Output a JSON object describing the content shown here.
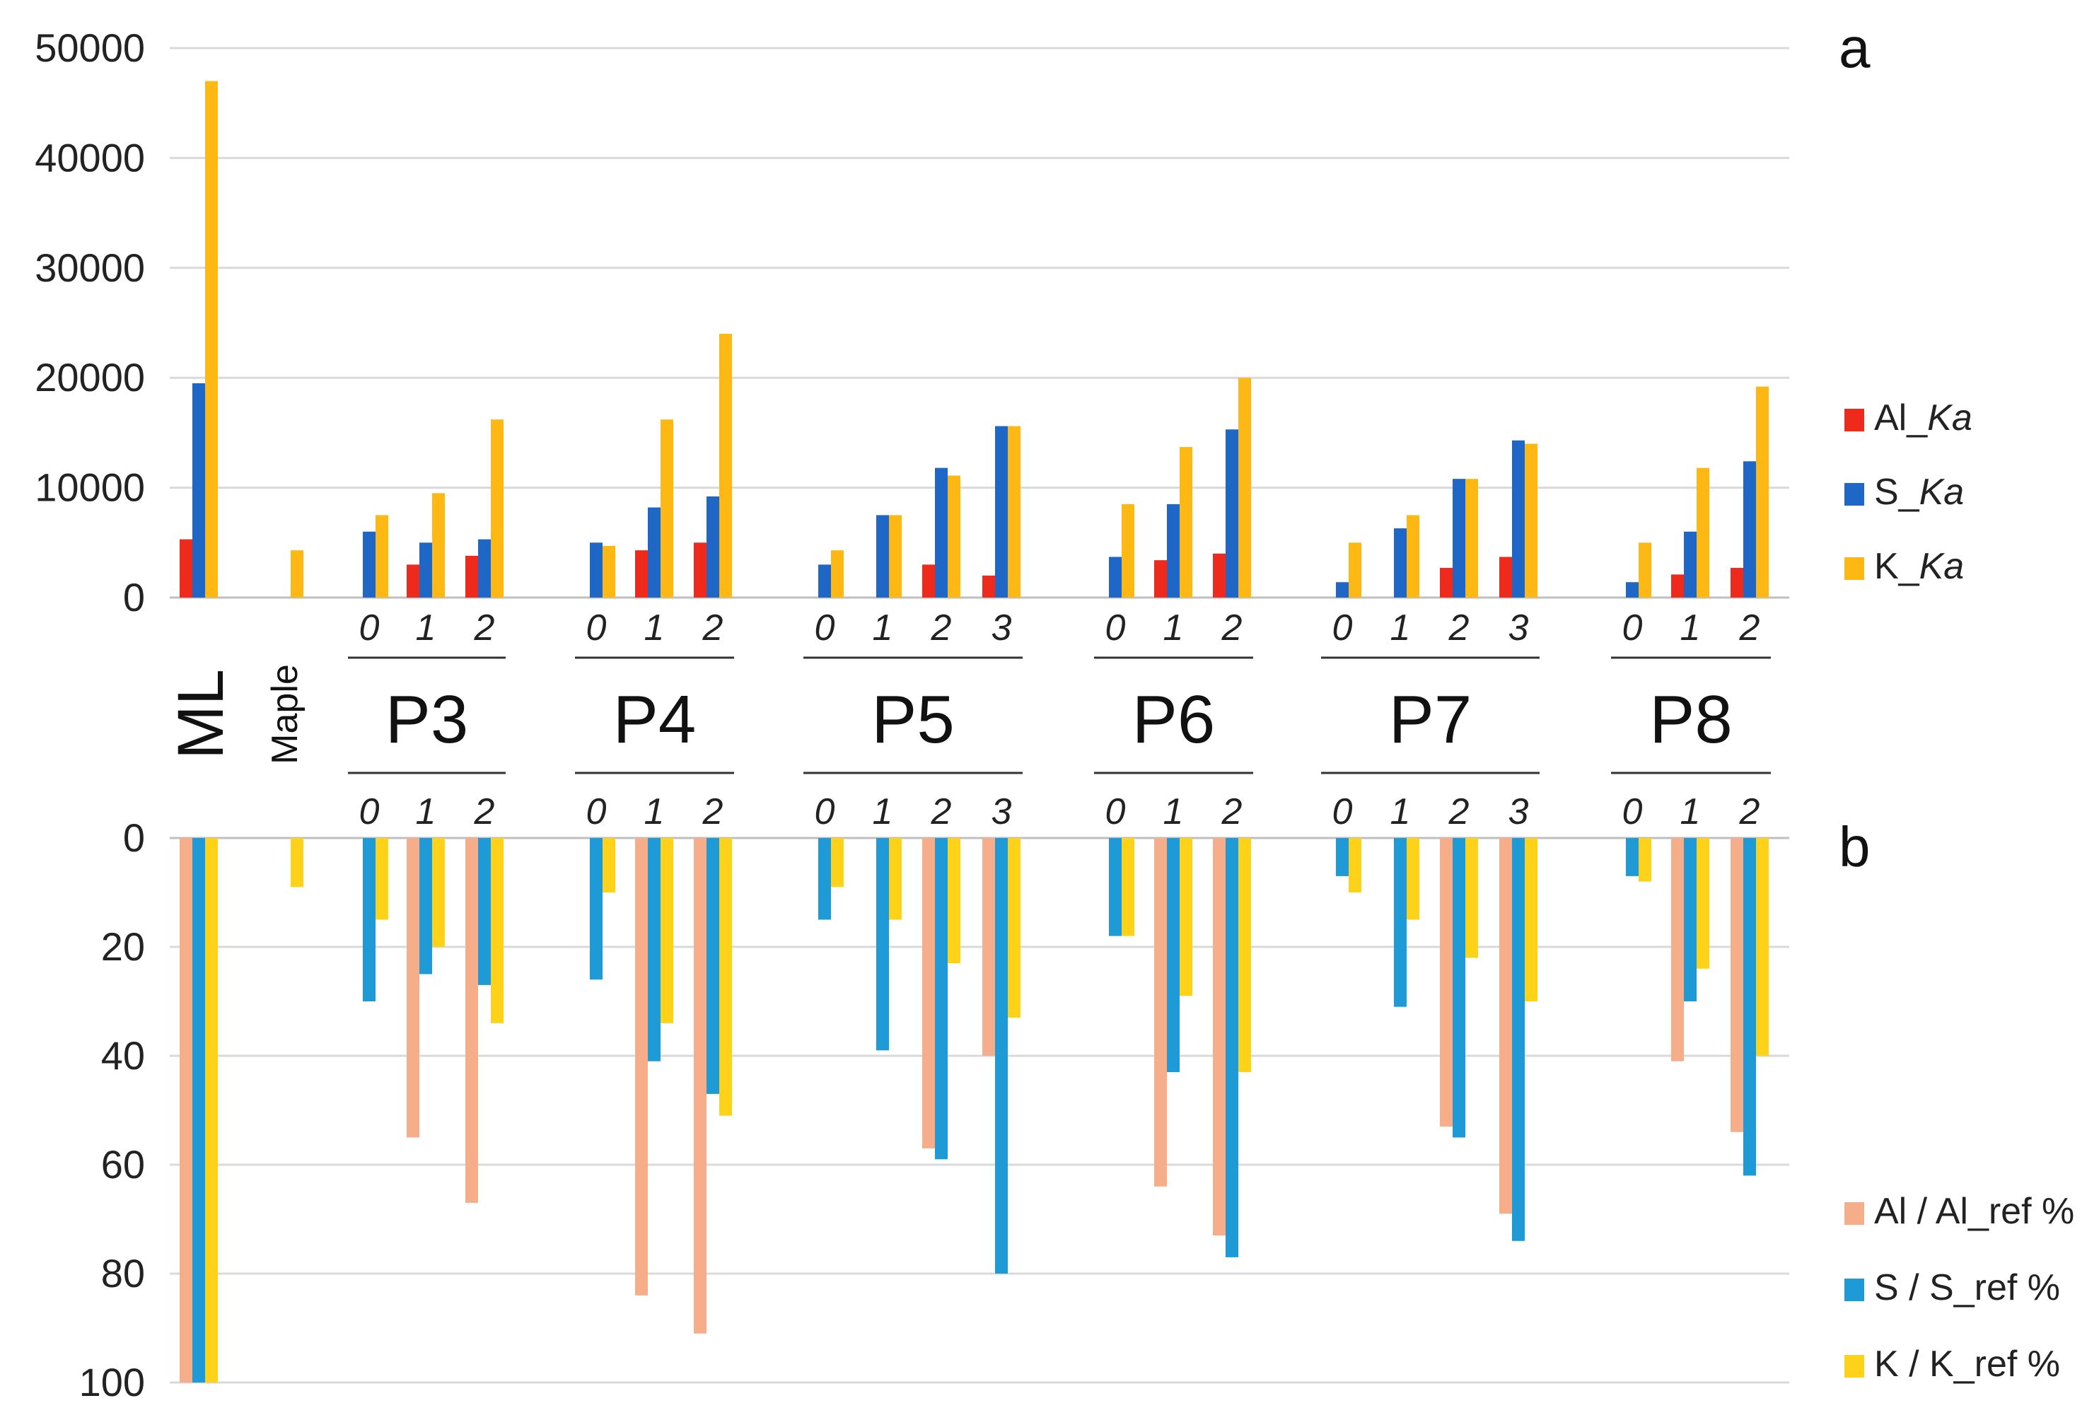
{
  "chart_data": [
    {
      "panel": "a",
      "type": "bar",
      "ylim": [
        0,
        50000
      ],
      "yticks": [
        "0",
        "10000",
        "20000",
        "30000",
        "40000",
        "50000"
      ],
      "grid": true,
      "legend_position": "right",
      "series": [
        {
          "name_prefix": "Al_",
          "name_italic": "Ka",
          "color": "#ee2a1c",
          "values": [
            5300,
            0,
            0,
            3000,
            3800,
            0,
            4300,
            5000,
            0,
            0,
            3000,
            2000,
            0,
            3400,
            4000,
            0,
            0,
            2700,
            3700,
            0,
            2100,
            2700
          ]
        },
        {
          "name_prefix": "S_",
          "name_italic": "Ka",
          "color": "#1f67c6",
          "values": [
            19500,
            0,
            6000,
            5000,
            5300,
            5000,
            8200,
            9200,
            3000,
            7500,
            11800,
            15600,
            3700,
            8500,
            15300,
            1400,
            6300,
            10800,
            14300,
            1400,
            6000,
            12400
          ]
        },
        {
          "name_prefix": "K_",
          "name_italic": "Ka",
          "color": "#fdb813",
          "values": [
            47000,
            4300,
            7500,
            9500,
            16200,
            4700,
            16200,
            24000,
            4300,
            7500,
            11100,
            15600,
            8500,
            13700,
            20000,
            5000,
            7500,
            10800,
            14000,
            5000,
            11800,
            19200
          ]
        }
      ]
    },
    {
      "panel": "b",
      "type": "bar",
      "orientation": "downward",
      "ylim": [
        0,
        100
      ],
      "yticks": [
        "0",
        "20",
        "40",
        "60",
        "80",
        "100"
      ],
      "grid": true,
      "legend_position": "right",
      "series": [
        {
          "name": "Al / Al_ref %",
          "color": "#f6ad8a",
          "values": [
            100,
            0,
            0,
            55,
            67,
            0,
            84,
            91,
            0,
            0,
            57,
            40,
            0,
            64,
            73,
            0,
            0,
            53,
            69,
            0,
            41,
            54
          ]
        },
        {
          "name": "S / S_ref %",
          "color": "#1e9bd7",
          "values": [
            100,
            0,
            30,
            25,
            27,
            26,
            41,
            47,
            15,
            39,
            59,
            80,
            18,
            43,
            77,
            7,
            31,
            55,
            74,
            7,
            30,
            62
          ]
        },
        {
          "name": "K / K_ref %",
          "color": "#ffd21a",
          "values": [
            100,
            9,
            15,
            20,
            34,
            10,
            34,
            51,
            9,
            15,
            23,
            33,
            18,
            29,
            43,
            10,
            15,
            22,
            30,
            8,
            24,
            40
          ]
        }
      ]
    }
  ],
  "categories": [
    {
      "group": "ML",
      "sub": ""
    },
    {
      "group": "Maple",
      "sub": ""
    },
    {
      "group": "P3",
      "sub": "0"
    },
    {
      "group": "P3",
      "sub": "1"
    },
    {
      "group": "P3",
      "sub": "2"
    },
    {
      "group": "P4",
      "sub": "0"
    },
    {
      "group": "P4",
      "sub": "1"
    },
    {
      "group": "P4",
      "sub": "2"
    },
    {
      "group": "P5",
      "sub": "0"
    },
    {
      "group": "P5",
      "sub": "1"
    },
    {
      "group": "P5",
      "sub": "2"
    },
    {
      "group": "P5",
      "sub": "3"
    },
    {
      "group": "P6",
      "sub": "0"
    },
    {
      "group": "P6",
      "sub": "1"
    },
    {
      "group": "P6",
      "sub": "2"
    },
    {
      "group": "P7",
      "sub": "0"
    },
    {
      "group": "P7",
      "sub": "1"
    },
    {
      "group": "P7",
      "sub": "2"
    },
    {
      "group": "P7",
      "sub": "3"
    },
    {
      "group": "P8",
      "sub": "0"
    },
    {
      "group": "P8",
      "sub": "1"
    },
    {
      "group": "P8",
      "sub": "2"
    }
  ],
  "groups": [
    "P3",
    "P4",
    "P5",
    "P6",
    "P7",
    "P8"
  ],
  "side_labels": {
    "ml": "ML",
    "maple": "Maple"
  },
  "panel_labels": {
    "a": "a",
    "b": "b"
  }
}
